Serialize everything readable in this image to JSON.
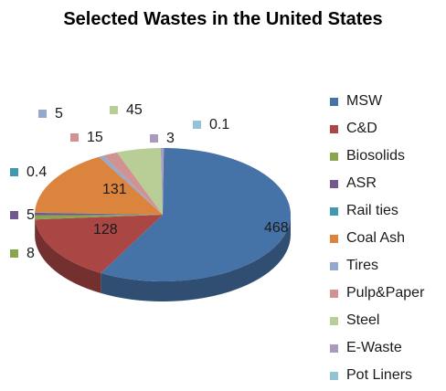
{
  "chart_data": {
    "type": "pie",
    "title": "Selected Wastes in the United States",
    "legend_position": "right",
    "slices": [
      {
        "label": "MSW",
        "value": 468,
        "value_label": "468",
        "color": "#4572A7"
      },
      {
        "label": "C&D",
        "value": 128,
        "value_label": "128",
        "color": "#AA4643"
      },
      {
        "label": "Biosolids",
        "value": 8,
        "value_label": "8",
        "color": "#89A54E"
      },
      {
        "label": "ASR",
        "value": 5,
        "value_label": "5",
        "color": "#71588F"
      },
      {
        "label": "Rail ties",
        "value": 0.4,
        "value_label": "0.4",
        "color": "#4198AF"
      },
      {
        "label": "Coal Ash",
        "value": 131,
        "value_label": "131",
        "color": "#DB843D"
      },
      {
        "label": "Tires",
        "value": 5,
        "value_label": "5",
        "color": "#93A9CF"
      },
      {
        "label": "Pulp&Paper",
        "value": 15,
        "value_label": "15",
        "color": "#D19392"
      },
      {
        "label": "Steel",
        "value": 45,
        "value_label": "45",
        "color": "#B9CD96"
      },
      {
        "label": "E-Waste",
        "value": 3,
        "value_label": "3",
        "color": "#A99BBD"
      },
      {
        "label": "Pot Liners",
        "value": 0.1,
        "value_label": "0.1",
        "color": "#91C3D5"
      }
    ]
  }
}
